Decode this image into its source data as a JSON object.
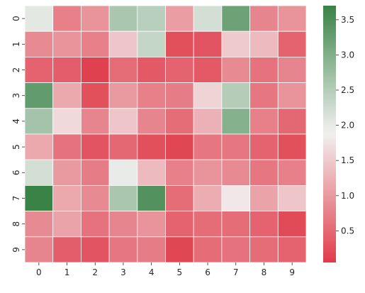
{
  "chart_data": {
    "type": "heatmap",
    "title": "",
    "xlabel": "",
    "ylabel": "",
    "x_categories": [
      "0",
      "1",
      "2",
      "3",
      "4",
      "5",
      "6",
      "7",
      "8",
      "9"
    ],
    "y_categories": [
      "0",
      "1",
      "2",
      "3",
      "4",
      "5",
      "6",
      "7",
      "8",
      "9"
    ],
    "values": [
      [
        2.05,
        0.75,
        0.95,
        2.6,
        2.45,
        1.05,
        2.2,
        3.2,
        0.8,
        0.95
      ],
      [
        0.85,
        0.95,
        0.75,
        1.45,
        2.35,
        0.25,
        0.3,
        1.5,
        1.35,
        0.45
      ],
      [
        0.45,
        0.4,
        0.1,
        0.55,
        0.35,
        0.45,
        0.35,
        0.85,
        0.6,
        0.8
      ],
      [
        3.3,
        1.15,
        0.25,
        1.0,
        0.75,
        0.7,
        1.6,
        2.5,
        0.65,
        0.95
      ],
      [
        2.65,
        1.65,
        0.8,
        1.45,
        0.8,
        0.55,
        1.25,
        2.95,
        0.75,
        0.5
      ],
      [
        1.15,
        0.6,
        0.3,
        0.5,
        0.25,
        0.15,
        0.65,
        0.65,
        0.45,
        0.25
      ],
      [
        2.2,
        1.0,
        0.7,
        2.0,
        1.35,
        0.75,
        0.95,
        0.85,
        0.65,
        0.75
      ],
      [
        3.7,
        1.15,
        0.85,
        2.6,
        3.45,
        0.55,
        1.2,
        1.8,
        1.1,
        1.45
      ],
      [
        0.85,
        1.1,
        0.6,
        0.8,
        0.95,
        0.45,
        0.55,
        0.55,
        0.45,
        0.2
      ],
      [
        0.8,
        0.4,
        0.3,
        0.65,
        0.7,
        0.15,
        0.55,
        0.6,
        0.55,
        0.45
      ]
    ],
    "vmin": 0.05,
    "vmax": 3.7,
    "colorbar_ticks": [
      "0.5",
      "1.0",
      "1.5",
      "2.0",
      "2.5",
      "3.0",
      "3.5"
    ],
    "colorscale": {
      "low": "#e03c4a",
      "mid": "#f2f1f1",
      "high": "#398346",
      "mid_value": 1.9
    },
    "grid": true,
    "legend": "colorbar-right"
  }
}
